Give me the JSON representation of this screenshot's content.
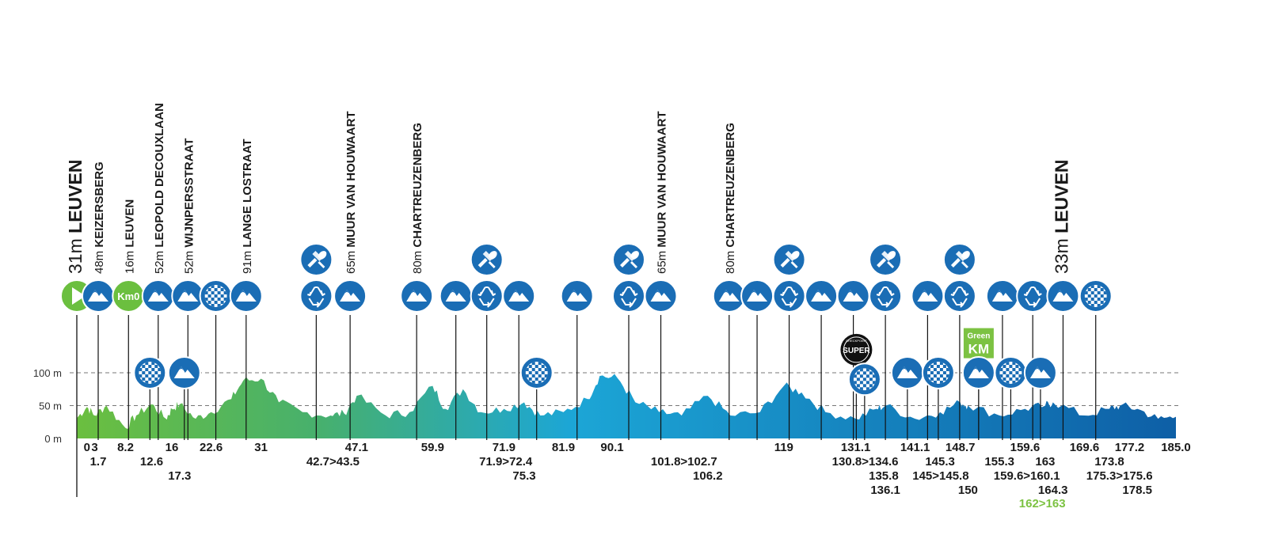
{
  "chart_data": {
    "type": "area",
    "title": "",
    "xlabel": "",
    "ylabel": "",
    "x_range": [
      0,
      185.0
    ],
    "ylim": [
      0,
      100
    ],
    "grid": true,
    "yticks": [
      {
        "value": 0,
        "label": "0 m"
      },
      {
        "value": 50,
        "label": "50 m"
      },
      {
        "value": 100,
        "label": "100 m"
      }
    ],
    "colors": {
      "start": "#6bbf3f",
      "mid": "#1ca6d6",
      "end": "#0e5fa6",
      "icon": "#1a6db5",
      "green": "#7cc242"
    },
    "elevation_profile": [
      {
        "km": 0,
        "elev": 31
      },
      {
        "km": 1.7,
        "elev": 48
      },
      {
        "km": 3,
        "elev": 35
      },
      {
        "km": 5,
        "elev": 50
      },
      {
        "km": 8.2,
        "elev": 16
      },
      {
        "km": 10,
        "elev": 35
      },
      {
        "km": 12.6,
        "elev": 52
      },
      {
        "km": 15,
        "elev": 30
      },
      {
        "km": 16,
        "elev": 45
      },
      {
        "km": 17.3,
        "elev": 52
      },
      {
        "km": 20,
        "elev": 30
      },
      {
        "km": 22.6,
        "elev": 40
      },
      {
        "km": 26,
        "elev": 60
      },
      {
        "km": 28,
        "elev": 88
      },
      {
        "km": 31,
        "elev": 91
      },
      {
        "km": 34,
        "elev": 55
      },
      {
        "km": 38,
        "elev": 40
      },
      {
        "km": 42.7,
        "elev": 35
      },
      {
        "km": 45,
        "elev": 38
      },
      {
        "km": 47.1,
        "elev": 65
      },
      {
        "km": 52,
        "elev": 35
      },
      {
        "km": 56,
        "elev": 40
      },
      {
        "km": 59.9,
        "elev": 80
      },
      {
        "km": 62,
        "elev": 45
      },
      {
        "km": 65,
        "elev": 75
      },
      {
        "km": 68,
        "elev": 40
      },
      {
        "km": 71.9,
        "elev": 45
      },
      {
        "km": 75.3,
        "elev": 55
      },
      {
        "km": 78,
        "elev": 35
      },
      {
        "km": 81.9,
        "elev": 40
      },
      {
        "km": 86,
        "elev": 60
      },
      {
        "km": 88,
        "elev": 95
      },
      {
        "km": 91,
        "elev": 92
      },
      {
        "km": 94,
        "elev": 55
      },
      {
        "km": 98,
        "elev": 40
      },
      {
        "km": 101.8,
        "elev": 35
      },
      {
        "km": 106.2,
        "elev": 65
      },
      {
        "km": 110,
        "elev": 35
      },
      {
        "km": 115,
        "elev": 40
      },
      {
        "km": 119,
        "elev": 80
      },
      {
        "km": 122,
        "elev": 70
      },
      {
        "km": 126,
        "elev": 40
      },
      {
        "km": 131.1,
        "elev": 30
      },
      {
        "km": 134.6,
        "elev": 45
      },
      {
        "km": 136.1,
        "elev": 50
      },
      {
        "km": 141.1,
        "elev": 30
      },
      {
        "km": 145.3,
        "elev": 40
      },
      {
        "km": 148.7,
        "elev": 55
      },
      {
        "km": 150,
        "elev": 50
      },
      {
        "km": 155.3,
        "elev": 35
      },
      {
        "km": 159.6,
        "elev": 45
      },
      {
        "km": 163,
        "elev": 50
      },
      {
        "km": 164.3,
        "elev": 55
      },
      {
        "km": 169.6,
        "elev": 35
      },
      {
        "km": 173.8,
        "elev": 45
      },
      {
        "km": 175.6,
        "elev": 50
      },
      {
        "km": 178.5,
        "elev": 45
      },
      {
        "km": 182,
        "elev": 30
      },
      {
        "km": 185.0,
        "elev": 33
      }
    ],
    "km_labels": [
      {
        "text": "0",
        "km": 1.7,
        "row": 0
      },
      {
        "text": "3",
        "km": 3,
        "row": 0
      },
      {
        "text": "8.2",
        "km": 8.2,
        "row": 0
      },
      {
        "text": "16",
        "km": 16,
        "row": 0
      },
      {
        "text": "22.6",
        "km": 22.6,
        "row": 0
      },
      {
        "text": "31",
        "km": 31,
        "row": 0
      },
      {
        "text": "47.1",
        "km": 47.1,
        "row": 0
      },
      {
        "text": "59.9",
        "km": 59.9,
        "row": 0
      },
      {
        "text": "71.9",
        "km": 71.9,
        "row": 0
      },
      {
        "text": "81.9",
        "km": 81.9,
        "row": 0
      },
      {
        "text": "90.1",
        "km": 90.1,
        "row": 0
      },
      {
        "text": "119",
        "km": 119,
        "row": 0
      },
      {
        "text": "131.1",
        "km": 131.1,
        "row": 0
      },
      {
        "text": "141.1",
        "km": 141.1,
        "row": 0
      },
      {
        "text": "148.7",
        "km": 148.7,
        "row": 0
      },
      {
        "text": "159.6",
        "km": 159.6,
        "row": 0
      },
      {
        "text": "169.6",
        "km": 169.6,
        "row": 0
      },
      {
        "text": "177.2",
        "km": 177.2,
        "row": 0
      },
      {
        "text": "185.0",
        "km": 185.0,
        "row": 0
      },
      {
        "text": "1.7",
        "km": 3.6,
        "row": 1
      },
      {
        "text": "12.6",
        "km": 12.6,
        "row": 1
      },
      {
        "text": "42.7>43.5",
        "km": 43.1,
        "row": 1
      },
      {
        "text": "71.9>72.4",
        "km": 72.2,
        "row": 1
      },
      {
        "text": "101.8>102.7",
        "km": 102.2,
        "row": 1
      },
      {
        "text": "130.8>134.6",
        "km": 132.7,
        "row": 1
      },
      {
        "text": "145.3",
        "km": 145.3,
        "row": 1
      },
      {
        "text": "155.3",
        "km": 155.3,
        "row": 1
      },
      {
        "text": "163",
        "km": 163,
        "row": 1
      },
      {
        "text": "173.8",
        "km": 173.8,
        "row": 1
      },
      {
        "text": "17.3",
        "km": 17.3,
        "row": 2
      },
      {
        "text": "75.3",
        "km": 75.3,
        "row": 2
      },
      {
        "text": "106.2",
        "km": 106.2,
        "row": 2
      },
      {
        "text": "135.8",
        "km": 135.8,
        "row": 2
      },
      {
        "text": "145>145.8",
        "km": 145.4,
        "row": 2
      },
      {
        "text": "159.6>160.1",
        "km": 159.9,
        "row": 2
      },
      {
        "text": "175.3>175.6",
        "km": 175.5,
        "row": 2
      },
      {
        "text": "136.1",
        "km": 136.1,
        "row": 3
      },
      {
        "text": "150",
        "km": 150,
        "row": 3
      },
      {
        "text": "164.3",
        "km": 164.3,
        "row": 3
      },
      {
        "text": "178.5",
        "km": 178.5,
        "row": 3
      },
      {
        "text": "162>163",
        "km": 162.5,
        "row": 4,
        "green": true
      }
    ],
    "top_markers": [
      {
        "type": "start",
        "km": 0,
        "label_elev": "31m",
        "label_name": "LEUVEN",
        "big": true
      },
      {
        "type": "climb",
        "km": 3.6,
        "label_elev": "48m",
        "label_name": "KEIZERSBERG"
      },
      {
        "type": "km0",
        "km": 8.7,
        "label_elev": "16m",
        "label_name": "LEUVEN"
      },
      {
        "type": "climb",
        "km": 13.7,
        "label_elev": "52m",
        "label_name": "LEOPOLD DECOUXLAAN"
      },
      {
        "type": "climb",
        "km": 18.7,
        "label_elev": "52m",
        "label_name": "WIJNPERSSTRAAT"
      },
      {
        "type": "sprint",
        "km": 23.4
      },
      {
        "type": "climb",
        "km": 28.5,
        "label_elev": "91m",
        "label_name": "LANGE LOSTRAAT"
      },
      {
        "type": "recycle",
        "km": 40.3
      },
      {
        "type": "climb",
        "km": 46.0,
        "label_elev": "65m",
        "label_name": "MUUR VAN HOUWAART"
      },
      {
        "type": "climb",
        "km": 57.2,
        "label_elev": "80m",
        "label_name": "CHARTREUZENBERG"
      },
      {
        "type": "climb",
        "km": 63.8
      },
      {
        "type": "recycle",
        "km": 69.0
      },
      {
        "type": "climb",
        "km": 74.4
      },
      {
        "type": "climb",
        "km": 84.2
      },
      {
        "type": "recycle",
        "km": 92.9
      },
      {
        "type": "climb",
        "km": 98.3,
        "label_elev": "65m",
        "label_name": "MUUR VAN HOUWAART"
      },
      {
        "type": "climb",
        "km": 109.8,
        "label_elev": "80m",
        "label_name": "CHARTREUZENBERG"
      },
      {
        "type": "climb",
        "km": 114.5
      },
      {
        "type": "recycle",
        "km": 119.9
      },
      {
        "type": "climb",
        "km": 125.3
      },
      {
        "type": "climb",
        "km": 130.7
      },
      {
        "type": "recycle",
        "km": 136.1
      },
      {
        "type": "climb",
        "km": 143.2
      },
      {
        "type": "recycle",
        "km": 148.6
      },
      {
        "type": "climb",
        "km": 155.8
      },
      {
        "type": "recycle",
        "km": 160.9
      },
      {
        "type": "climb",
        "km": 166.0,
        "label_elev": "33m",
        "label_name": "LEUVEN",
        "big": true
      },
      {
        "type": "sprint",
        "km": 171.5
      }
    ],
    "food_markers": [
      {
        "km": 40.3
      },
      {
        "km": 69.0
      },
      {
        "km": 92.9
      },
      {
        "km": 119.9
      },
      {
        "km": 136.1
      },
      {
        "km": 148.6
      }
    ],
    "mid_markers": [
      {
        "type": "sprint",
        "km": 12.3,
        "elev": 100
      },
      {
        "type": "climb",
        "km": 18.1,
        "elev": 100
      },
      {
        "type": "sprint",
        "km": 77.4,
        "elev": 100
      },
      {
        "type": "superu",
        "km": 131.2,
        "elev": 135
      },
      {
        "type": "sprint",
        "km": 132.6,
        "elev": 90
      },
      {
        "type": "climb",
        "km": 139.8,
        "elev": 100
      },
      {
        "type": "sprint",
        "km": 145.0,
        "elev": 100
      },
      {
        "type": "greenkm",
        "km": 151.8,
        "elev": 145,
        "text1": "Green",
        "text2": "KM"
      },
      {
        "type": "climb",
        "km": 151.8,
        "elev": 100
      },
      {
        "type": "sprint",
        "km": 157.2,
        "elev": 100
      },
      {
        "type": "climb",
        "km": 162.2,
        "elev": 100
      }
    ],
    "km0_text": "Km0",
    "superu_text": "SUPER",
    "superu_sub": "CHECKPOINT"
  }
}
